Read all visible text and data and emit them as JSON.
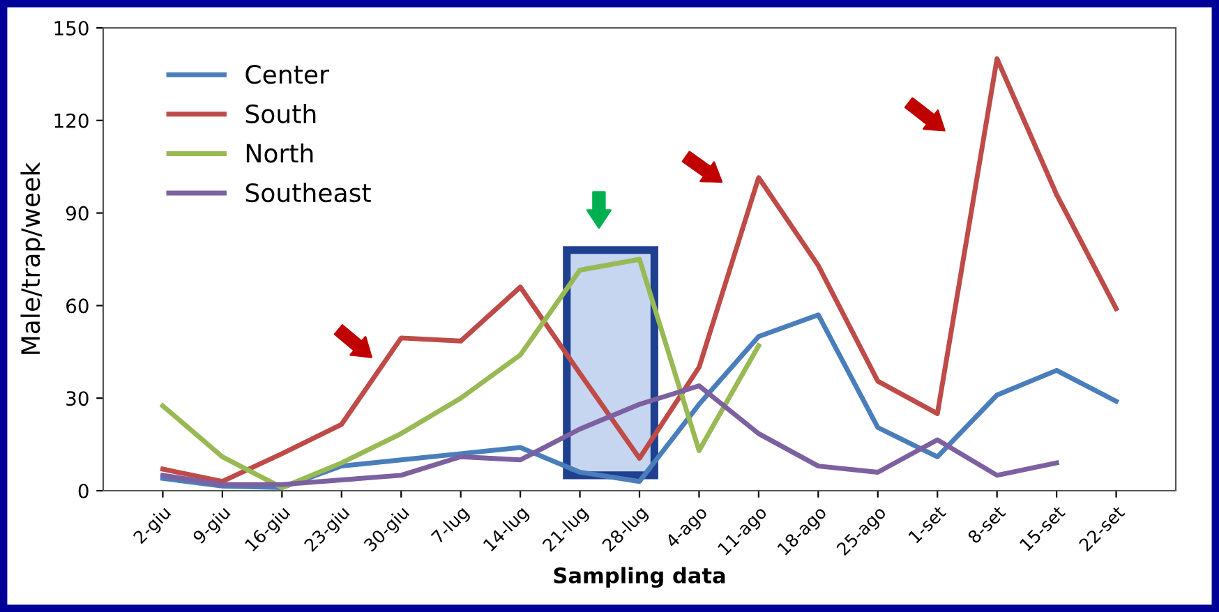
{
  "chart_data": {
    "type": "line",
    "xlabel": "Sampling data",
    "ylabel": "Male/trap/week",
    "categories": [
      "2-giu",
      "9-giu",
      "16-giu",
      "23-giu",
      "30-giu",
      "7-lug",
      "14-lug",
      "21-lug",
      "28-lug",
      "4-ago",
      "11-ago",
      "18-ago",
      "25-ago",
      "1-set",
      "8-set",
      "15-set",
      "22-set"
    ],
    "series": [
      {
        "name": "Center",
        "color": "#4a7ebb",
        "values": [
          4,
          1.5,
          1,
          8,
          10,
          12,
          14,
          6,
          3,
          28,
          50,
          57,
          20.5,
          11,
          31,
          39,
          29
        ]
      },
      {
        "name": "South",
        "color": "#be4b48",
        "values": [
          7,
          3,
          12,
          21.5,
          49.5,
          48.5,
          66,
          38,
          10.5,
          40,
          101.5,
          73,
          35.5,
          25,
          140,
          96,
          59
        ]
      },
      {
        "name": "North",
        "color": "#98b954",
        "values": [
          27.5,
          11,
          1,
          9,
          18.5,
          30,
          44,
          71.5,
          75,
          13,
          47,
          null,
          null,
          null,
          null,
          null,
          null
        ]
      },
      {
        "name": "Southeast",
        "color": "#7d60a0",
        "values": [
          5,
          2,
          2,
          3.5,
          5,
          11,
          10,
          20,
          28,
          34,
          18.5,
          8,
          6,
          16.5,
          5,
          9,
          null
        ]
      }
    ],
    "ylim": [
      0,
      150
    ],
    "yticks": [
      0,
      30,
      60,
      90,
      120,
      150
    ],
    "bands": [
      {
        "axis": "x",
        "from": "21-lug",
        "to": "28-lug",
        "color": "#c6d5f0"
      }
    ],
    "grid": false,
    "legend": "top left",
    "marker": "none",
    "line_style": "solid"
  }
}
